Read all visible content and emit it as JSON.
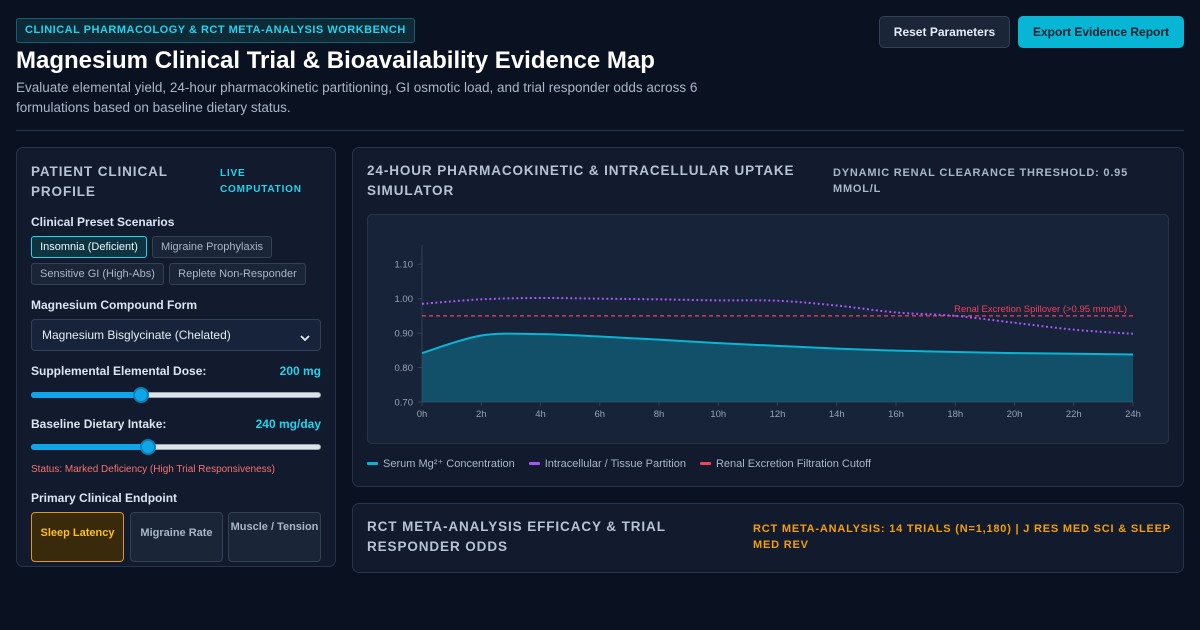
{
  "header": {
    "tag": "CLINICAL PHARMACOLOGY & RCT META-ANALYSIS WORKBENCH",
    "title": "Magnesium Clinical Trial & Bioavailability Evidence Map",
    "subtitle": "Evaluate elemental yield, 24-hour pharmacokinetic partitioning, GI osmotic load, and trial responder odds across 6 formulations based on baseline dietary status.",
    "reset_label": "Reset Parameters",
    "export_label": "Export Evidence Report"
  },
  "profile": {
    "heading": "PATIENT CLINICAL PROFILE",
    "live_badge": "LIVE COMPUTATION",
    "presets_label": "Clinical Preset Scenarios",
    "presets": [
      {
        "label": "Insomnia (Deficient)",
        "active": true
      },
      {
        "label": "Migraine Prophylaxis",
        "active": false
      },
      {
        "label": "Sensitive GI (High-Abs)",
        "active": false
      },
      {
        "label": "Replete Non-Responder",
        "active": false
      }
    ],
    "compound_label": "Magnesium Compound Form",
    "compound_value": "Magnesium Bisglycinate (Chelated)",
    "dose_label": "Supplemental Elemental Dose:",
    "dose_value": "200 mg",
    "dose_level": 0.38,
    "diet_label": "Baseline Dietary Intake:",
    "diet_value": "240 mg/day",
    "diet_level": 0.405,
    "status_text": "Status: Marked Deficiency (High Trial Responsiveness)",
    "endpoint_label": "Primary Clinical Endpoint",
    "endpoints": [
      {
        "label": "Sleep Latency",
        "active": true
      },
      {
        "label": "Migraine Rate",
        "active": false
      },
      {
        "label": "Muscle / Tension",
        "active": false
      }
    ]
  },
  "pk": {
    "heading": "24-HOUR PHARMACOKINETIC & INTRACELLULAR UPTAKE SIMULATOR",
    "threshold_label": "DYNAMIC RENAL CLEARANCE THRESHOLD: 0.95 MMOL/L",
    "annotation": "Renal Excretion Spillover (>0.95 mmol/L)",
    "legend": [
      {
        "label": "Serum Mg²⁺ Concentration",
        "color": "#06b6d4"
      },
      {
        "label": "Intracellular / Tissue Partition",
        "color": "#a855f7"
      },
      {
        "label": "Renal Excretion Filtration Cutoff",
        "color": "#f43f5e"
      }
    ]
  },
  "chart_data": {
    "type": "line",
    "x": [
      "0h",
      "2h",
      "4h",
      "6h",
      "8h",
      "10h",
      "12h",
      "14h",
      "16h",
      "18h",
      "20h",
      "22h",
      "24h"
    ],
    "ylim": [
      0.7,
      1.15
    ],
    "y_ticks": [
      "0.70",
      "0.80",
      "0.90",
      "1.00",
      "1.10"
    ],
    "series": [
      {
        "name": "Serum Mg²⁺ Concentration",
        "color": "#06b6d4",
        "values": [
          0.842,
          0.893,
          0.897,
          0.89,
          0.881,
          0.871,
          0.863,
          0.855,
          0.849,
          0.845,
          0.842,
          0.84,
          0.838
        ]
      },
      {
        "name": "Intracellular / Tissue Partition",
        "color": "#a855f7",
        "values": [
          0.985,
          0.998,
          1.002,
          1.0,
          0.998,
          0.995,
          0.994,
          0.98,
          0.96,
          0.95,
          0.93,
          0.91,
          0.898
        ]
      },
      {
        "name": "Renal Excretion Filtration Cutoff",
        "color": "#f43f5e",
        "values": [
          0.95,
          0.95,
          0.95,
          0.95,
          0.95,
          0.95,
          0.95,
          0.95,
          0.95,
          0.95,
          0.95,
          0.95,
          0.95
        ]
      }
    ]
  },
  "rct": {
    "heading": "RCT META-ANALYSIS EFFICACY & TRIAL RESPONDER ODDS",
    "badge": "RCT META-ANALYSIS: 14 TRIALS (N=1,180) | J RES MED SCI & SLEEP MED REV"
  }
}
